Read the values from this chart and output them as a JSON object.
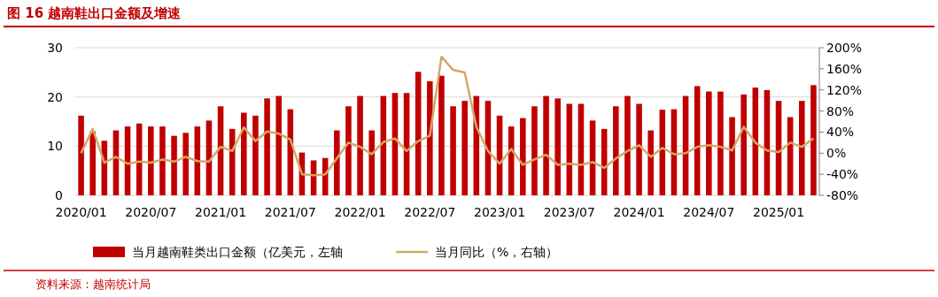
{
  "chart_data": {
    "type": "bar",
    "title": "图 16 越南鞋出口金额及增速",
    "categories": [
      "2020/01",
      null,
      null,
      null,
      null,
      null,
      "2020/07",
      null,
      null,
      null,
      null,
      null,
      "2021/01",
      null,
      null,
      null,
      null,
      null,
      "2021/07",
      null,
      null,
      null,
      null,
      null,
      "2022/01",
      null,
      null,
      null,
      null,
      null,
      "2022/07",
      null,
      null,
      null,
      null,
      null,
      "2023/01",
      null,
      null,
      null,
      null,
      null,
      "2023/07",
      null,
      null,
      null,
      null,
      null,
      "2024/01",
      null,
      null,
      null,
      null,
      null,
      "2024/07",
      null,
      null,
      null,
      null,
      null,
      "2025/01",
      null,
      null,
      null
    ],
    "series": [
      {
        "name": "当月越南鞋类出口金额（亿美元，左轴",
        "color": "#c00000",
        "values": [
          16.2,
          13,
          11.1,
          13.2,
          14.0,
          14.6,
          14.0,
          14.0,
          12.1,
          12.7,
          14.0,
          15.2,
          18.1,
          13.5,
          16.8,
          16.2,
          19.7,
          20.2,
          17.5,
          8.7,
          7.1,
          7.6,
          13.2,
          18.1,
          20.2,
          13.2,
          20.2,
          20.8,
          20.8,
          25.1,
          23.2,
          24.3,
          18.1,
          19.2,
          20.2,
          19.2,
          16.2,
          14.0,
          15.7,
          18.1,
          20.2,
          19.7,
          18.6,
          18.6,
          15.2,
          13.5,
          18.1,
          20.2,
          18.6,
          13.2,
          17.4,
          17.5,
          20.2,
          22.2,
          21.1,
          21.1,
          15.9,
          20.5,
          21.9,
          21.4,
          19.2,
          15.9,
          19.2,
          22.4
        ]
      },
      {
        "name": "当月同比（%，右轴）",
        "type": "line",
        "axis": "y2",
        "color": "#d4a866",
        "values": [
          0,
          46,
          -18,
          -7,
          -20,
          -16,
          -18,
          -12,
          -16,
          -7,
          -15,
          -16,
          12,
          4,
          49,
          23,
          41,
          37,
          26,
          -40,
          -42,
          -40,
          -10,
          20,
          12,
          -2,
          21,
          28,
          4,
          23,
          33,
          183,
          158,
          153,
          50,
          4,
          -20,
          8,
          -22,
          -12,
          -3,
          -22,
          -20,
          -22,
          -17,
          -28,
          -10,
          4,
          15,
          -7,
          10,
          -2,
          0,
          12,
          15,
          12,
          5,
          50,
          20,
          5,
          2,
          20,
          12,
          28
        ]
      }
    ],
    "ylim": [
      0,
      30
    ],
    "yticks": [
      0,
      10,
      20,
      30
    ],
    "y2lim": [
      -80,
      200
    ],
    "y2ticks": [
      {
        "value": -80,
        "label": "-80%"
      },
      {
        "value": -40,
        "label": "-40%"
      },
      {
        "value": 0,
        "label": "0%"
      },
      {
        "value": 40,
        "label": "40%"
      },
      {
        "value": 80,
        "label": "80%"
      },
      {
        "value": 120,
        "label": "120%"
      },
      {
        "value": 160,
        "label": "160%"
      },
      {
        "value": 200,
        "label": "200%"
      }
    ],
    "grid": "y",
    "legend": "bottom",
    "annotations": [
      "资料来源：越南统计局"
    ]
  }
}
